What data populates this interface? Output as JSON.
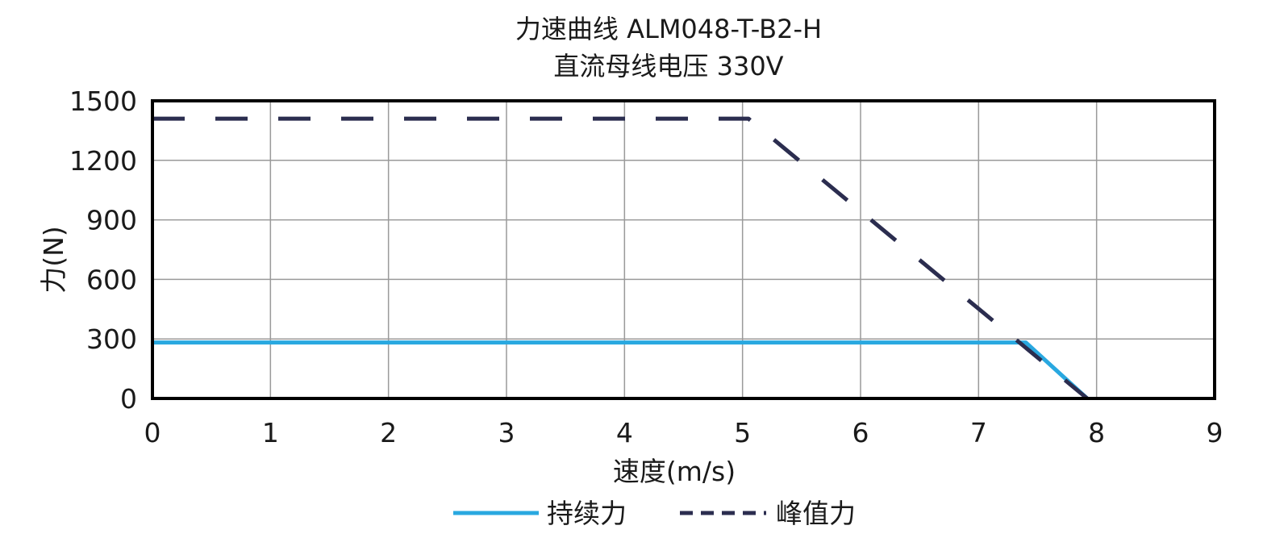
{
  "chart_data": {
    "type": "line",
    "title": "力速曲线 ALM048-T-B2-H",
    "subtitle": "直流母线电压 330V",
    "xlabel": "速度(m/s)",
    "ylabel": "力(N)",
    "xlim": [
      0,
      9
    ],
    "ylim": [
      0,
      1500
    ],
    "xticks": [
      "0",
      "1",
      "2",
      "3",
      "4",
      "5",
      "6",
      "7",
      "8",
      "9"
    ],
    "yticks": [
      "0",
      "300",
      "600",
      "900",
      "1200",
      "1500"
    ],
    "grid": true,
    "legend_position": "bottom-center",
    "series": [
      {
        "name": "持续力",
        "style": "solid",
        "color": "#29a8e0",
        "x": [
          0,
          7.4,
          7.92
        ],
        "y": [
          282,
          282,
          0
        ]
      },
      {
        "name": "峰值力",
        "style": "dashed",
        "color": "#2b2d4f",
        "x": [
          0,
          5.05,
          7.92
        ],
        "y": [
          1410,
          1410,
          0
        ]
      }
    ]
  }
}
